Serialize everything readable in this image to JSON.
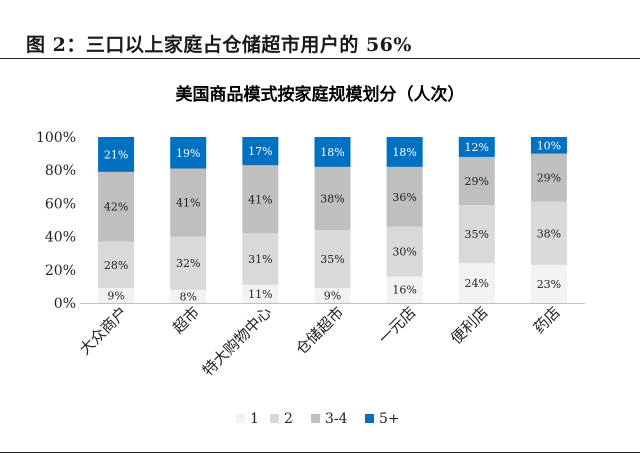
{
  "figure": {
    "title": "图 2：三口以上家庭占仓储超市用户的 56%"
  },
  "chart_data": {
    "type": "bar",
    "stacked": true,
    "title": "美国商品模式按家庭规模划分（人次）",
    "categories": [
      "大众商户",
      "超市",
      "特大购物中心",
      "仓储超市",
      "一元店",
      "便利店",
      "药店"
    ],
    "series": [
      {
        "name": "1",
        "values": [
          9,
          8,
          11,
          9,
          16,
          24,
          23
        ],
        "color": "#f2f2f2",
        "labels": [
          "9%",
          "8%",
          "11%",
          "9%",
          "16%",
          "24%",
          "23%"
        ]
      },
      {
        "name": "2",
        "values": [
          28,
          32,
          31,
          35,
          30,
          35,
          38
        ],
        "color": "#d9d9d9",
        "labels": [
          "28%",
          "32%",
          "31%",
          "35%",
          "30%",
          "35%",
          "38%"
        ]
      },
      {
        "name": "3-4",
        "values": [
          42,
          41,
          41,
          38,
          36,
          29,
          29
        ],
        "color": "#bfbfbf",
        "labels": [
          "42%",
          "41%",
          "41%",
          "38%",
          "36%",
          "29%",
          "29%"
        ]
      },
      {
        "name": "5+",
        "values": [
          21,
          19,
          17,
          18,
          18,
          12,
          10
        ],
        "color": "#0070c0",
        "labels": [
          "21%",
          "19%",
          "17%",
          "18%",
          "18%",
          "12%",
          "10%"
        ]
      }
    ],
    "ylim": [
      0,
      100
    ],
    "yticks": [
      "0%",
      "20%",
      "40%",
      "60%",
      "80%",
      "100%"
    ],
    "xlabel": "",
    "ylabel": "",
    "legend": "bottom"
  }
}
